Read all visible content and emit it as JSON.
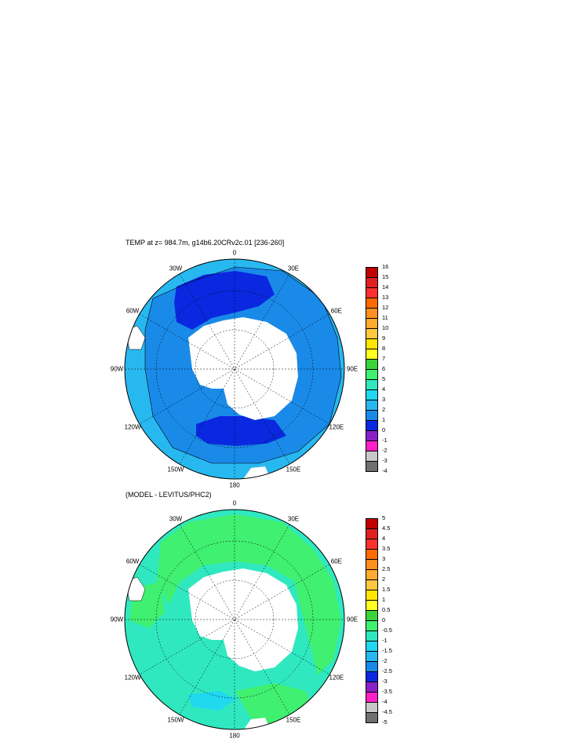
{
  "maps": [
    {
      "title": "TEMP at z= 984.7m, g14b6.20CRv2c.01 [236-260]",
      "lon_labels": [
        "0",
        "30E",
        "60E",
        "90E",
        "120E",
        "150E",
        "180",
        "150W",
        "120W",
        "90W",
        "60W",
        "30W"
      ],
      "colorbar": [
        "16",
        "15",
        "14",
        "13",
        "12",
        "11",
        "10",
        "9",
        "8",
        "7",
        "6",
        "5",
        "4",
        "3",
        "2",
        "1",
        "0",
        "-1",
        "-2",
        "-3",
        "-4"
      ],
      "colors": [
        "#c00000",
        "#e02020",
        "#ff3030",
        "#ff6a00",
        "#ff9020",
        "#ffaa30",
        "#ffc840",
        "#ffe600",
        "#ffff20",
        "#3ad43a",
        "#40f070",
        "#30e8c0",
        "#20d8f0",
        "#28b8f0",
        "#1a8ae8",
        "#0a28e0",
        "#8a20c8",
        "#ff20c8",
        "#c8c8c8",
        "#707070"
      ]
    },
    {
      "title": "(MODEL - LEVITUS/PHC2)",
      "lon_labels": [
        "0",
        "30E",
        "60E",
        "90E",
        "120E",
        "150E",
        "180",
        "150W",
        "120W",
        "90W",
        "60W",
        "30W"
      ],
      "colorbar": [
        "5",
        "4.5",
        "4",
        "3.5",
        "3",
        "2.5",
        "2",
        "1.5",
        "1",
        "0.5",
        "0",
        "-0.5",
        "-1",
        "-1.5",
        "-2",
        "-2.5",
        "-3",
        "-3.5",
        "-4",
        "-4.5",
        "-5"
      ],
      "colors": [
        "#c00000",
        "#e02020",
        "#ff3030",
        "#ff6a00",
        "#ff9020",
        "#ffaa30",
        "#ffc840",
        "#ffe600",
        "#ffff20",
        "#3ad43a",
        "#40f070",
        "#30e8c0",
        "#20d8f0",
        "#28b8f0",
        "#1a8ae8",
        "#0a28e0",
        "#8a20c8",
        "#ff20c8",
        "#c8c8c8",
        "#707070"
      ]
    }
  ]
}
